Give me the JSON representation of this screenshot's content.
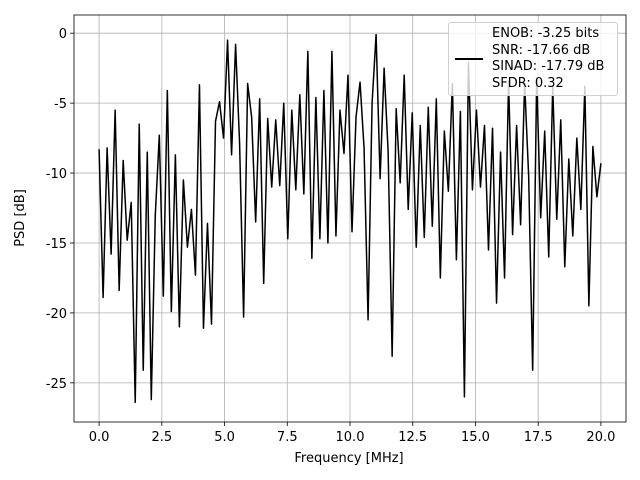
{
  "chart_data": {
    "type": "line",
    "xlabel": "Frequency [MHz]",
    "ylabel": "PSD [dB]",
    "x": [
      0.0,
      0.16,
      0.32,
      0.48,
      0.64,
      0.8,
      0.96,
      1.12,
      1.28,
      1.44,
      1.6,
      1.76,
      1.92,
      2.08,
      2.24,
      2.4,
      2.56,
      2.72,
      2.88,
      3.04,
      3.2,
      3.36,
      3.52,
      3.68,
      3.84,
      4.0,
      4.16,
      4.32,
      4.48,
      4.64,
      4.8,
      4.96,
      5.12,
      5.28,
      5.44,
      5.6,
      5.76,
      5.92,
      6.08,
      6.24,
      6.4,
      6.56,
      6.72,
      6.88,
      7.04,
      7.2,
      7.36,
      7.52,
      7.68,
      7.84,
      8.0,
      8.16,
      8.32,
      8.48,
      8.64,
      8.8,
      8.96,
      9.12,
      9.28,
      9.44,
      9.6,
      9.76,
      9.92,
      10.08,
      10.24,
      10.4,
      10.56,
      10.72,
      10.88,
      11.04,
      11.2,
      11.36,
      11.52,
      11.68,
      11.84,
      12.0,
      12.16,
      12.32,
      12.48,
      12.64,
      12.8,
      12.96,
      13.12,
      13.28,
      13.44,
      13.6,
      13.76,
      13.92,
      14.08,
      14.24,
      14.4,
      14.56,
      14.72,
      14.88,
      15.04,
      15.2,
      15.36,
      15.52,
      15.68,
      15.84,
      16.0,
      16.16,
      16.32,
      16.48,
      16.64,
      16.8,
      16.96,
      17.12,
      17.28,
      17.44,
      17.6,
      17.76,
      17.92,
      18.08,
      18.24,
      18.4,
      18.56,
      18.72,
      18.88,
      19.04,
      19.2,
      19.36,
      19.52,
      19.68,
      19.84,
      20.0
    ],
    "series": [
      {
        "name": "ENOB: -3.25 bits\nSNR: -17.66 dB\nSINAD: -17.79 dB\nSFDR: 0.32",
        "color": "#000000",
        "values": [
          -8.3,
          -18.9,
          -8.2,
          -15.8,
          -5.5,
          -18.4,
          -9.1,
          -14.8,
          -12.1,
          -26.4,
          -6.5,
          -24.1,
          -8.5,
          -26.2,
          -13.0,
          -7.3,
          -18.8,
          -4.1,
          -19.9,
          -8.7,
          -21.0,
          -10.5,
          -15.3,
          -12.6,
          -17.3,
          -3.7,
          -21.1,
          -13.6,
          -20.8,
          -6.3,
          -4.9,
          -7.5,
          -0.5,
          -8.7,
          -0.8,
          -7.9,
          -20.3,
          -3.6,
          -6.0,
          -13.5,
          -4.7,
          -17.9,
          -6.1,
          -11.0,
          -6.2,
          -10.9,
          -5.0,
          -14.7,
          -5.5,
          -11.2,
          -4.4,
          -11.5,
          -1.3,
          -16.1,
          -4.6,
          -14.7,
          -4.1,
          -15.0,
          -1.3,
          -14.5,
          -5.5,
          -8.6,
          -3.0,
          -14.2,
          -6.0,
          -3.5,
          -8.2,
          -20.5,
          -5.0,
          -0.1,
          -10.4,
          -2.5,
          -8.5,
          -23.1,
          -5.4,
          -10.7,
          -3.0,
          -12.6,
          -5.7,
          -15.3,
          -6.6,
          -14.6,
          -5.3,
          -13.8,
          -4.7,
          -17.5,
          -7.0,
          -11.3,
          -3.6,
          -16.2,
          -5.6,
          -26.0,
          -2.1,
          -11.2,
          -5.5,
          -11.0,
          -6.6,
          -15.5,
          -6.8,
          -19.3,
          -8.5,
          -17.5,
          -3.4,
          -14.4,
          -6.6,
          -13.7,
          -3.6,
          -10.2,
          -24.1,
          -3.2,
          -13.2,
          -7.0,
          -16.0,
          -3.8,
          -13.3,
          -6.2,
          -16.7,
          -9.0,
          -14.5,
          -7.5,
          -12.6,
          -3.8,
          -19.5,
          -8.1,
          -11.7,
          -9.3
        ]
      }
    ],
    "xlim": [
      -1,
      21
    ],
    "ylim": [
      -27.8,
      1.3
    ],
    "xticks": [
      {
        "value": 0,
        "label": "0.0"
      },
      2.5,
      {
        "value": 5,
        "label": "5.0"
      },
      7.5,
      {
        "value": 10,
        "label": "10.0"
      },
      12.5,
      {
        "value": 15,
        "label": "15.0"
      },
      17.5,
      {
        "value": 20,
        "label": "20.0"
      }
    ],
    "yticks": [
      0,
      -5,
      -10,
      -15,
      -20,
      -25
    ],
    "grid": true,
    "legend": "upper right"
  }
}
